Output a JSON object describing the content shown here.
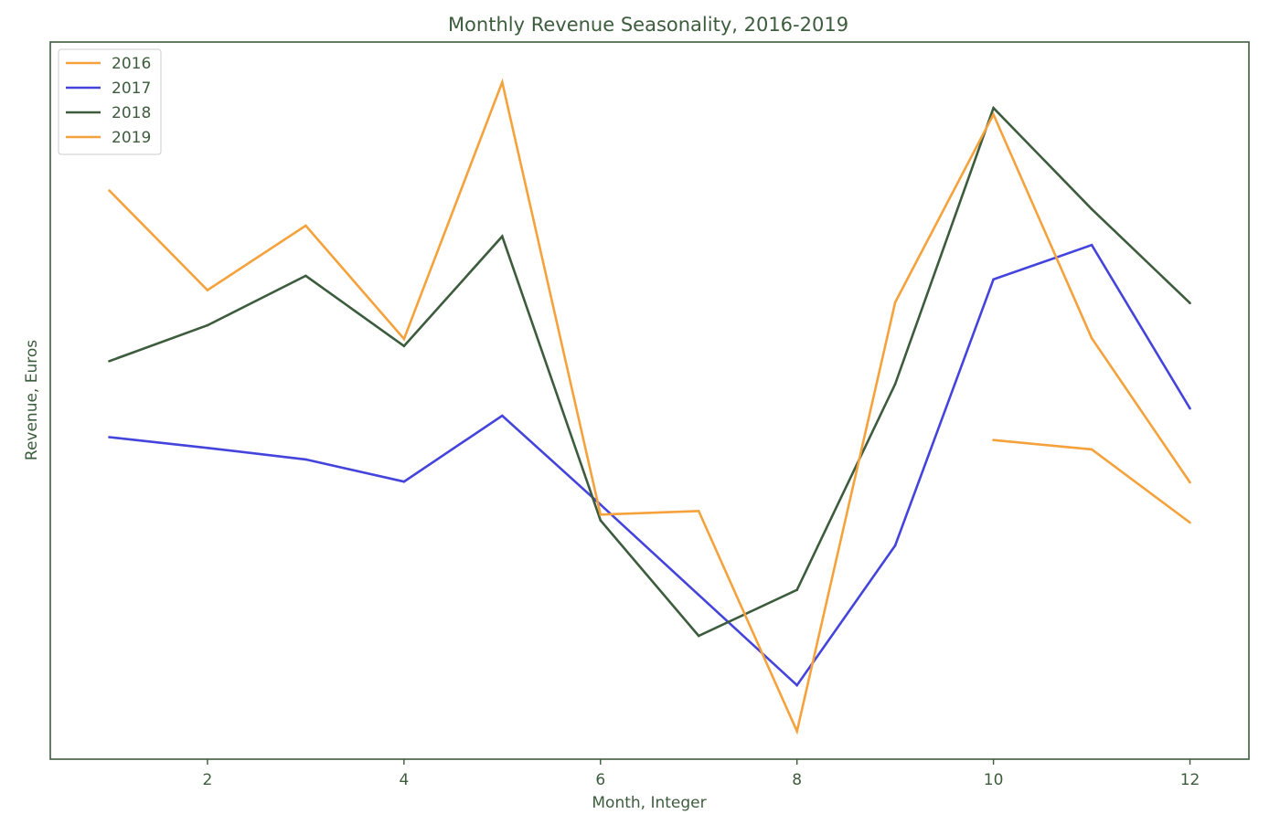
{
  "chart_data": {
    "type": "line",
    "title": "Monthly Revenue Seasonality, 2016-2019",
    "xlabel": "Month, Integer",
    "ylabel": "Revenue, Euros",
    "xlim": [
      0.4,
      12.6
    ],
    "ylim": [
      0,
      100
    ],
    "x_ticks": [
      2,
      4,
      6,
      8,
      10,
      12
    ],
    "y_ticks_shown": false,
    "grid": false,
    "legend_position": "top-left",
    "series": [
      {
        "name": "2016",
        "color": "#f5a23c",
        "points": [
          [
            10,
            44.5
          ],
          [
            11,
            43.2
          ],
          [
            12,
            33.0
          ]
        ]
      },
      {
        "name": "2017",
        "color": "#4444dd",
        "points": [
          [
            1,
            44.9
          ],
          [
            2,
            43.4
          ],
          [
            3,
            41.8
          ],
          [
            4,
            38.7
          ],
          [
            5,
            47.9
          ],
          [
            6,
            35.5
          ],
          [
            7,
            22.9
          ],
          [
            8,
            10.3
          ],
          [
            9,
            29.8
          ],
          [
            10,
            66.9
          ],
          [
            11,
            71.7
          ],
          [
            12,
            48.9
          ]
        ]
      },
      {
        "name": "2018",
        "color": "#3d5c3d",
        "points": [
          [
            1,
            55.5
          ],
          [
            2,
            60.5
          ],
          [
            3,
            67.4
          ],
          [
            4,
            57.6
          ],
          [
            5,
            72.9
          ],
          [
            6,
            33.3
          ],
          [
            7,
            17.2
          ],
          [
            8,
            23.6
          ],
          [
            9,
            52.3
          ],
          [
            10,
            90.8
          ],
          [
            11,
            76.7
          ],
          [
            12,
            63.6
          ]
        ]
      },
      {
        "name": "2019",
        "color": "#f5a23c",
        "points": [
          [
            1,
            79.3
          ],
          [
            2,
            65.4
          ],
          [
            3,
            74.4
          ],
          [
            4,
            58.6
          ],
          [
            5,
            94.4
          ],
          [
            6,
            34.1
          ],
          [
            7,
            34.6
          ],
          [
            8,
            3.9
          ],
          [
            9,
            63.7
          ],
          [
            10,
            89.9
          ],
          [
            11,
            58.7
          ],
          [
            12,
            38.6
          ]
        ]
      }
    ]
  }
}
